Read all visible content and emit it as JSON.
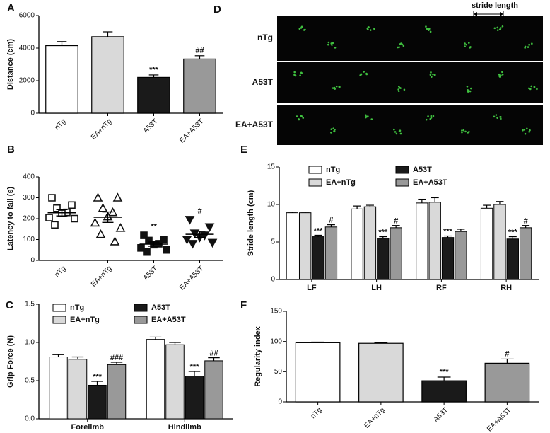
{
  "chart_data": [
    {
      "type": "bar",
      "label": "A",
      "ylabel": "Distance (cm)",
      "categories": [
        "nTg",
        "EA+nTg",
        "A53T",
        "EA+A53T"
      ],
      "values": [
        4150,
        4700,
        2200,
        3330
      ],
      "errors": [
        250,
        300,
        150,
        200
      ],
      "colors": [
        "#ffffff",
        "#d9d9d9",
        "#1a1a1a",
        "#999999"
      ],
      "significance": [
        null,
        null,
        "***",
        "##"
      ],
      "ylim": [
        0,
        6000
      ],
      "yticks": [
        0,
        2000,
        4000,
        6000
      ]
    },
    {
      "type": "scatter",
      "label": "B",
      "ylabel": "Latency to fall (s)",
      "categories": [
        "nTg",
        "EA+nTg",
        "A53T",
        "EA+A53T"
      ],
      "points": [
        [
          300,
          265,
          250,
          230,
          225,
          205,
          200,
          170
        ],
        [
          300,
          300,
          250,
          230,
          210,
          180,
          155,
          125,
          90
        ],
        [
          120,
          100,
          95,
          80,
          75,
          60,
          50,
          40
        ],
        [
          195,
          160,
          130,
          120,
          110,
          100,
          85,
          80
        ]
      ],
      "means": [
        228,
        207,
        78,
        125
      ],
      "errors": [
        15,
        25,
        10,
        15
      ],
      "markers": [
        "square",
        "triangle",
        "filled-square",
        "inverted-triangle"
      ],
      "significance": [
        null,
        null,
        "**",
        "#"
      ],
      "ylim": [
        0,
        400
      ],
      "yticks": [
        0,
        100,
        200,
        300,
        400
      ]
    },
    {
      "type": "bar",
      "label": "C",
      "ylabel": "Grip Force (N)",
      "categories": [
        "Forelimb",
        "Hindlimb"
      ],
      "series": [
        {
          "name": "nTg",
          "color": "#ffffff",
          "values": [
            0.81,
            1.04
          ],
          "errors": [
            0.03,
            0.03
          ],
          "significance": [
            null,
            null
          ]
        },
        {
          "name": "EA+nTg",
          "color": "#d9d9d9",
          "values": [
            0.78,
            0.97
          ],
          "errors": [
            0.03,
            0.03
          ],
          "significance": [
            null,
            null
          ]
        },
        {
          "name": "A53T",
          "color": "#1a1a1a",
          "values": [
            0.44,
            0.56
          ],
          "errors": [
            0.05,
            0.06
          ],
          "significance": [
            "***",
            "***"
          ]
        },
        {
          "name": "EA+A53T",
          "color": "#999999",
          "values": [
            0.71,
            0.76
          ],
          "errors": [
            0.03,
            0.04
          ],
          "significance": [
            "###",
            "##"
          ]
        }
      ],
      "ylim": [
        0,
        1.5
      ],
      "yticks": [
        {
          "value": 0,
          "label": "0.0"
        },
        0.5,
        {
          "value": 1,
          "label": "1.0"
        },
        1.5
      ]
    },
    {
      "type": "bar",
      "label": "E",
      "ylabel": "Stride length (cm)",
      "categories": [
        "LF",
        "LH",
        "RF",
        "RH"
      ],
      "series": [
        {
          "name": "nTg",
          "color": "#ffffff",
          "values": [
            8.9,
            9.4,
            10.2,
            9.5
          ],
          "errors": [
            0.1,
            0.4,
            0.5,
            0.4
          ],
          "significance": [
            null,
            null,
            null,
            null
          ]
        },
        {
          "name": "EA+nTg",
          "color": "#d9d9d9",
          "values": [
            8.9,
            9.7,
            10.3,
            10.0
          ],
          "errors": [
            0.1,
            0.2,
            0.6,
            0.4
          ],
          "significance": [
            null,
            null,
            null,
            null
          ]
        },
        {
          "name": "A53T",
          "color": "#1a1a1a",
          "values": [
            5.7,
            5.5,
            5.6,
            5.4
          ],
          "errors": [
            0.2,
            0.2,
            0.2,
            0.3
          ],
          "significance": [
            "***",
            "***",
            "***",
            "***"
          ]
        },
        {
          "name": "EA+A53T",
          "color": "#999999",
          "values": [
            7.0,
            6.9,
            6.4,
            6.9
          ],
          "errors": [
            0.3,
            0.3,
            0.3,
            0.3
          ],
          "significance": [
            "#",
            "#",
            null,
            "#"
          ]
        }
      ],
      "ylim": [
        0,
        15
      ],
      "yticks": [
        0,
        5,
        10,
        15
      ]
    },
    {
      "type": "bar",
      "label": "F",
      "ylabel": "Regularity index",
      "categories": [
        "nTg",
        "EA+nTg",
        "A53T",
        "EA+A53T"
      ],
      "values": [
        98,
        97,
        35,
        64
      ],
      "errors": [
        1,
        1,
        6,
        7
      ],
      "colors": [
        "#ffffff",
        "#d9d9d9",
        "#1a1a1a",
        "#999999"
      ],
      "significance": [
        null,
        null,
        "***",
        "#"
      ],
      "ylim": [
        0,
        150
      ],
      "yticks": [
        0,
        50,
        100,
        150
      ]
    }
  ],
  "footprints": {
    "label": "D",
    "annotation": "stride length",
    "rows": [
      "nTg",
      "A53T",
      "EA+A53T"
    ]
  }
}
